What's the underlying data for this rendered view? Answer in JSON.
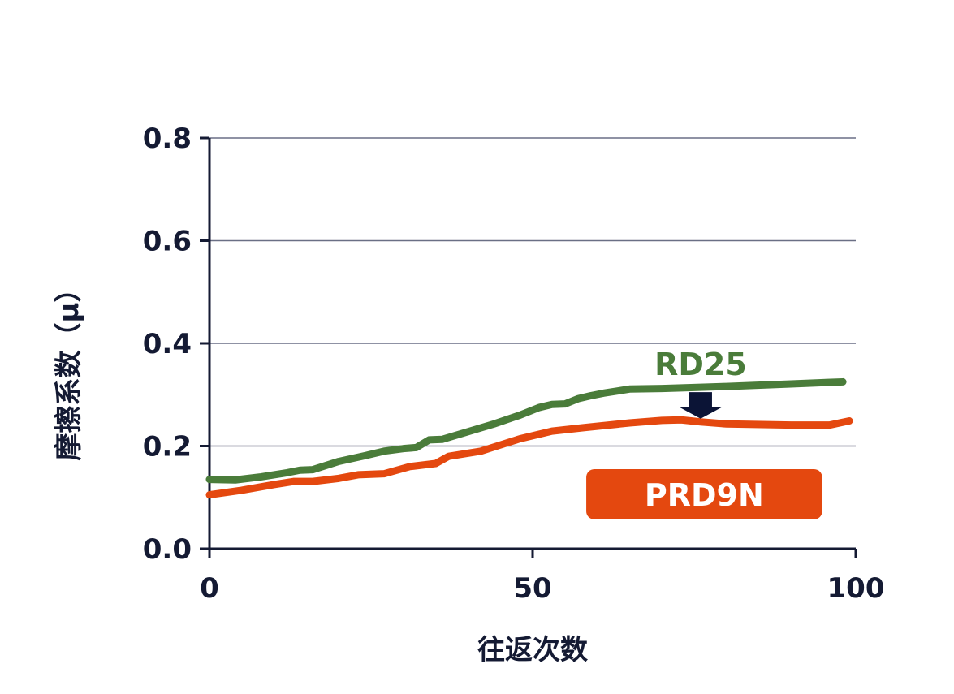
{
  "colors": {
    "axis": "#141a33",
    "grid": "#6a6f85",
    "rd25": "#4a7c3a",
    "prd9n": "#e4480f",
    "arrow": "#0b1436",
    "badge_text": "#ffffff"
  },
  "chart_data": {
    "type": "line",
    "xlabel": "往返次数",
    "ylabel": "摩擦系数（μ）",
    "xlim": [
      0,
      100
    ],
    "ylim": [
      0,
      0.8
    ],
    "xticks": [
      "0",
      "50",
      "100"
    ],
    "yticks": [
      "0.0",
      "0.2",
      "0.4",
      "0.6",
      "0.8"
    ],
    "grid": "horizontal",
    "series": [
      {
        "name": "RD25",
        "color": "#4a7c3a",
        "x": [
          0,
          4,
          8,
          12,
          14,
          16,
          20,
          24,
          27,
          30,
          32,
          34,
          36,
          40,
          44,
          48,
          51,
          53,
          55,
          57,
          59,
          61,
          65,
          70,
          75,
          80,
          90,
          98
        ],
        "y": [
          0.135,
          0.134,
          0.14,
          0.148,
          0.153,
          0.154,
          0.17,
          0.181,
          0.19,
          0.195,
          0.197,
          0.212,
          0.213,
          0.228,
          0.243,
          0.26,
          0.275,
          0.281,
          0.282,
          0.292,
          0.298,
          0.303,
          0.311,
          0.312,
          0.314,
          0.316,
          0.321,
          0.325
        ]
      },
      {
        "name": "PRD9N",
        "color": "#e4480f",
        "x": [
          0,
          5,
          10,
          13,
          16,
          20,
          23,
          27,
          31,
          35,
          37,
          42,
          44,
          48,
          53,
          58,
          65,
          70,
          73,
          76,
          80,
          90,
          96,
          99
        ],
        "y": [
          0.105,
          0.114,
          0.125,
          0.131,
          0.131,
          0.137,
          0.144,
          0.146,
          0.16,
          0.166,
          0.18,
          0.19,
          0.198,
          0.214,
          0.229,
          0.236,
          0.245,
          0.25,
          0.251,
          0.247,
          0.243,
          0.241,
          0.241,
          0.249
        ]
      }
    ],
    "annotations": [
      {
        "type": "label",
        "series": "RD25",
        "text": "RD25"
      },
      {
        "type": "badge",
        "series": "PRD9N",
        "text": "PRD9N"
      },
      {
        "type": "arrow",
        "from_series": "RD25",
        "to_series": "PRD9N",
        "x": 76
      }
    ]
  }
}
